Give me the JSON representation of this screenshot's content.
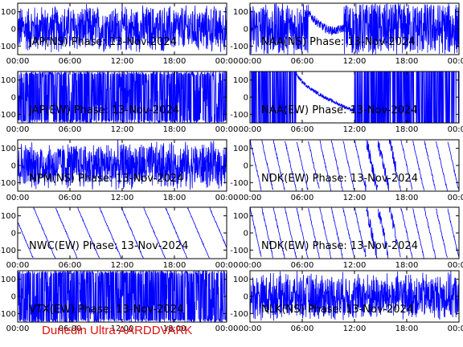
{
  "footer": "Dunedin Ultra AARDDVARK",
  "colors": {
    "trace": "#0000ff",
    "axis": "#000000",
    "footer": "#e01010"
  },
  "chart_data": [
    {
      "type": "line",
      "label": "JAP(NS) Phase: 13-Nov-2024",
      "pattern": "noise",
      "xlim": [
        "00:00",
        "24:00"
      ],
      "ylim": [
        -150,
        150
      ],
      "yticks": [
        100,
        0,
        -100
      ],
      "xticks": [
        "00:00",
        "06:00",
        "12:00",
        "18:00",
        "00:00"
      ]
    },
    {
      "type": "line",
      "label": "NAA(NS) Phase: 13-Nov-2024",
      "pattern": "noise-with-day-curve",
      "xlim": [
        "00:00",
        "24:00"
      ],
      "ylim": [
        -150,
        150
      ],
      "yticks": [
        100,
        0,
        -100
      ],
      "xticks": [
        "00:00",
        "06:00",
        "12:00",
        "18:00",
        "00:00"
      ]
    },
    {
      "type": "line",
      "label": "JAP(EW) Phase: 13-Nov-2024",
      "pattern": "dense-noise",
      "xlim": [
        "00:00",
        "24:00"
      ],
      "ylim": [
        -150,
        150
      ],
      "yticks": [
        100,
        0,
        -100
      ],
      "xticks": [
        "00:00",
        "06:00",
        "12:00",
        "18:00",
        "00:00"
      ]
    },
    {
      "type": "line",
      "label": "NAA(EW) Phase: 13-Nov-2024",
      "pattern": "dense-noise-with-day-curve",
      "xlim": [
        "00:00",
        "24:00"
      ],
      "ylim": [
        -150,
        150
      ],
      "yticks": [
        100,
        0,
        -100
      ],
      "xticks": [
        "00:00",
        "06:00",
        "12:00",
        "18:00",
        "00:00"
      ]
    },
    {
      "type": "line",
      "label": "NPM(NS) Phase: 13-Nov-2024",
      "pattern": "noise",
      "xlim": [
        "00:00",
        "24:00"
      ],
      "ylim": [
        -150,
        150
      ],
      "yticks": [
        100,
        0,
        -100
      ],
      "xticks": [
        "00:00",
        "06:00",
        "12:00",
        "18:00",
        "00:00"
      ]
    },
    {
      "type": "line",
      "label": "NDK(EW) Phase: 13-Nov-2024",
      "pattern": "sawtooth",
      "xlim": [
        "00:00",
        "24:00"
      ],
      "ylim": [
        -150,
        150
      ],
      "yticks": [
        100,
        0,
        -100
      ],
      "xticks": [
        "00:00",
        "06:00",
        "12:00",
        "18:00",
        "00:00"
      ]
    },
    {
      "type": "line",
      "label": "NWC(EW) Phase: 13-Nov-2024",
      "pattern": "slow-sawtooth",
      "xlim": [
        "00:00",
        "24:00"
      ],
      "ylim": [
        -150,
        150
      ],
      "yticks": [
        100,
        0,
        -100
      ],
      "xticks": [
        "00:00",
        "06:00",
        "12:00",
        "18:00",
        "00:00"
      ]
    },
    {
      "type": "line",
      "label": "NDK(EW) Phase: 13-Nov-2024",
      "pattern": "sawtooth",
      "xlim": [
        "00:00",
        "24:00"
      ],
      "ylim": [
        -150,
        150
      ],
      "yticks": [
        100,
        0,
        -100
      ],
      "xticks": [
        "00:00",
        "06:00",
        "12:00",
        "18:00",
        "00:00"
      ]
    },
    {
      "type": "line",
      "label": "VTX(EW) Phase: 13-Nov-2024",
      "pattern": "dense-noise",
      "xlim": [
        "00:00",
        "24:00"
      ],
      "ylim": [
        -150,
        150
      ],
      "yticks": [
        100,
        0,
        -100
      ],
      "xticks": [
        "00:00",
        "06:00",
        "12:00",
        "18:00",
        "00:00"
      ]
    },
    {
      "type": "line",
      "label": "NLK(NS) Phase: 13-Nov-2024",
      "pattern": "noise",
      "xlim": [
        "00:00",
        "24:00"
      ],
      "ylim": [
        -150,
        150
      ],
      "yticks": [
        100,
        0,
        -100
      ],
      "xticks": [
        "00:00",
        "06:00",
        "12:00",
        "18:00",
        "00:00"
      ]
    }
  ]
}
